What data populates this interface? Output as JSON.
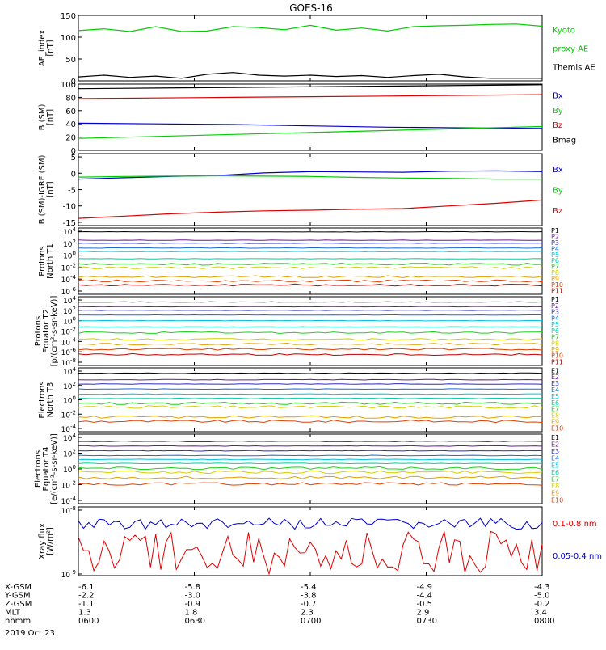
{
  "title": "GOES-16",
  "date": "2019 Oct 23",
  "x_ticks": [
    "0600",
    "0630",
    "0700",
    "0730",
    "0800"
  ],
  "ephemeris": {
    "labels": [
      "X-GSM",
      "Y-GSM",
      "Z-GSM",
      "MLT",
      "hhmm"
    ],
    "values": [
      [
        "-6.1",
        "-5.8",
        "-5.4",
        "-4.9",
        "-4.3"
      ],
      [
        "-2.2",
        "-3.0",
        "-3.8",
        "-4.4",
        "-5.0"
      ],
      [
        "-1.1",
        "-0.9",
        "-0.7",
        "-0.5",
        "-0.2"
      ],
      [
        "1.3",
        "1.8",
        "2.3",
        "2.9",
        "3.4"
      ],
      [
        "0600",
        "0630",
        "0700",
        "0730",
        "0800"
      ]
    ]
  },
  "colors": {
    "black": "#000000",
    "red": "#dd0000",
    "green": "#00cc00",
    "blue": "#0000cc",
    "p_series": [
      "#000000",
      "#6a1a8a",
      "#2a2ac0",
      "#1a6ad8",
      "#00c0e0",
      "#00d0a0",
      "#20d020",
      "#d0d000",
      "#e0a000",
      "#e04000",
      "#c00000"
    ]
  },
  "chart_data": [
    {
      "type": "line",
      "id": "ae",
      "ylabel": [
        "AE_index",
        "[nT]"
      ],
      "ylim": [
        0,
        150
      ],
      "yticks": [
        "0",
        "50",
        "100",
        "150"
      ],
      "legend": [
        {
          "text": "Kyoto",
          "color": "#00cc00"
        },
        {
          "text": "proxy AE",
          "color": "#00cc00"
        },
        {
          "text": "Themis AE",
          "color": "#000000"
        }
      ],
      "series": [
        {
          "name": "Kyoto proxy AE",
          "color": "#00cc00",
          "values": [
            115,
            119,
            113,
            124,
            113,
            114,
            124,
            122,
            117,
            127,
            116,
            121,
            114,
            124,
            126,
            127,
            129,
            130,
            125
          ]
        },
        {
          "name": "Themis AE",
          "color": "#000000",
          "values": [
            9,
            13,
            8,
            11,
            6,
            15,
            19,
            13,
            11,
            13,
            10,
            12,
            8,
            12,
            15,
            9,
            6,
            6,
            6
          ]
        }
      ]
    },
    {
      "type": "line",
      "id": "bsm",
      "ylabel": [
        "B (SM)",
        "[nT]"
      ],
      "ylim": [
        0,
        100
      ],
      "yticks": [
        "0",
        "20",
        "40",
        "60",
        "80",
        "100"
      ],
      "legend": [
        {
          "text": "Bx",
          "color": "#0000cc"
        },
        {
          "text": "By",
          "color": "#00cc00"
        },
        {
          "text": "Bz",
          "color": "#dd0000"
        },
        {
          "text": "Bmag",
          "color": "#000000"
        }
      ],
      "series": [
        {
          "name": "Bx",
          "color": "#0000cc",
          "values": [
            41,
            40,
            39,
            37,
            35,
            34,
            33
          ]
        },
        {
          "name": "By",
          "color": "#00cc00",
          "values": [
            18,
            21,
            24,
            27,
            30,
            33,
            36
          ]
        },
        {
          "name": "Bz",
          "color": "#dd0000",
          "values": [
            78,
            79,
            80,
            81,
            82,
            83,
            84
          ]
        },
        {
          "name": "Bmag",
          "color": "#000000",
          "values": [
            93,
            94,
            95,
            96,
            97,
            98,
            99
          ]
        }
      ]
    },
    {
      "type": "line",
      "id": "bres",
      "ylabel": [
        "B (SM)-IGRF (SM)",
        "[nT]"
      ],
      "ylim": [
        -16,
        6
      ],
      "yticks": [
        "-15",
        "-10",
        "-5",
        "0",
        "5"
      ],
      "legend": [
        {
          "text": "Bx",
          "color": "#0000cc"
        },
        {
          "text": "By",
          "color": "#00cc00"
        },
        {
          "text": "Bz",
          "color": "#dd0000"
        }
      ],
      "series": [
        {
          "name": "Bx",
          "color": "#0000cc",
          "values": [
            -1.8,
            -1.4,
            -1.0,
            -0.7,
            0.1,
            0.5,
            0.4,
            0.3,
            0.6,
            0.7,
            0.5
          ]
        },
        {
          "name": "By",
          "color": "#00cc00",
          "values": [
            -1.2,
            -1.0,
            -0.9,
            -0.8,
            -0.9,
            -1.0,
            -1.3,
            -1.5,
            -1.6,
            -1.8,
            -1.8
          ]
        },
        {
          "name": "Bz",
          "color": "#dd0000",
          "values": [
            -13.8,
            -13.1,
            -12.4,
            -11.9,
            -11.5,
            -11.3,
            -11.0,
            -10.8,
            -10.0,
            -9.2,
            -8.2
          ]
        }
      ]
    },
    {
      "type": "line",
      "id": "pn",
      "ylabel": [
        "Protons",
        "North T1"
      ],
      "yticks": [
        "10^4",
        "10^2",
        "10^0",
        "10^-2",
        "10^-4",
        "10^-6"
      ],
      "legend": [
        "P1",
        "P2",
        "P3",
        "P4",
        "P5",
        "P6",
        "P7",
        "P8",
        "P9",
        "P10",
        "P11"
      ],
      "series_log": [
        3.9,
        2.5,
        2.0,
        1.2,
        0.6,
        -0.6,
        -1.5,
        -2.1,
        -3.6,
        -4.3,
        -5.0
      ]
    },
    {
      "type": "line",
      "id": "pe",
      "ylabel": [
        "Protons",
        "Equator T2",
        "[p/(cm²-s-sr-keV)]"
      ],
      "yticks": [
        "10^4",
        "10^2",
        "10^0",
        "10^-2",
        "10^-4",
        "10^-6",
        "10^-8"
      ],
      "legend": [
        "P1",
        "P2",
        "P3",
        "P4",
        "P5",
        "P6",
        "P7",
        "P8",
        "P9",
        "P10",
        "P11"
      ],
      "series_log": [
        3.6,
        2.7,
        2.0,
        1.1,
        0.0,
        -1.2,
        -2.3,
        -3.6,
        -4.5,
        -5.5,
        -6.5
      ]
    },
    {
      "type": "line",
      "id": "en",
      "ylabel": [
        "Electrons",
        "North T3"
      ],
      "yticks": [
        "10^4",
        "10^2",
        "10^0",
        "10^-2",
        "10^-4"
      ],
      "legend": [
        "E1",
        "E2",
        "E3",
        "E4",
        "E5",
        "E6",
        "E7",
        "E8",
        "E9",
        "E10"
      ],
      "series_log": [
        3.7,
        2.8,
        2.2,
        1.5,
        0.8,
        0.2,
        -0.5,
        -1.0,
        -2.4,
        -3.0
      ]
    },
    {
      "type": "line",
      "id": "ee",
      "ylabel": [
        "Electrons",
        "Equator T4",
        "[e/(cm²-s-sr-keV)]"
      ],
      "yticks": [
        "10^4",
        "10^2",
        "10^0",
        "10^-2",
        "10^-4"
      ],
      "legend": [
        "E1",
        "E2",
        "E3",
        "E4",
        "E5",
        "E6",
        "E7",
        "E8",
        "E9",
        "E10"
      ],
      "series_log": [
        3.5,
        2.9,
        2.3,
        1.7,
        1.2,
        0.7,
        0.1,
        -0.4,
        -1.1,
        -1.9
      ]
    },
    {
      "type": "line",
      "id": "xray",
      "ylabel": [
        "Xray flux",
        "[W/m²]"
      ],
      "yticks": [
        "10^-8",
        "10^-9"
      ],
      "legend": [
        {
          "text": "0.1-0.8 nm",
          "color": "#dd0000"
        },
        {
          "text": "0.05-0.4 nm",
          "color": "#0000cc"
        }
      ],
      "series": [
        {
          "name": "0.1-0.8 nm",
          "color": "#dd0000"
        },
        {
          "name": "0.05-0.4 nm",
          "color": "#0000cc"
        }
      ]
    }
  ]
}
